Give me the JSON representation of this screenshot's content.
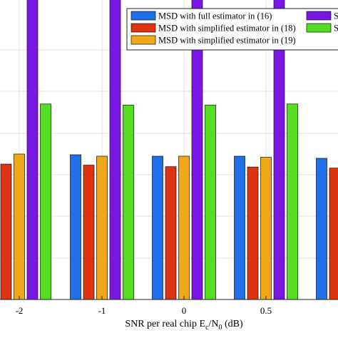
{
  "chart_data": {
    "type": "bar",
    "xlabel": "SNR per real chip E",
    "xlabel_sub1": "c",
    "xlabel_mid": "/N",
    "xlabel_sub2": "0",
    "xlabel_tail": " (dB)",
    "categories": [
      "-2",
      "-1",
      "0",
      "0.5",
      ""
    ],
    "grid": true,
    "legend_position": "top-right",
    "ylim": [
      0,
      1.0
    ],
    "series": [
      {
        "name": "MSD with full estimator in (16)",
        "color": "#1f6fe8",
        "values": [
          0.403,
          0.402,
          0.398,
          0.398,
          0.392
        ]
      },
      {
        "name": "MSD with simplified estimator in (18)",
        "color": "#dd3311",
        "values": [
          0.376,
          0.373,
          0.369,
          0.368,
          0.365
        ]
      },
      {
        "name": "MSD with simplified estimator in (19)",
        "color": "#f0a818",
        "values": [
          0.404,
          0.398,
          0.398,
          0.395,
          0.393
        ]
      },
      {
        "name": "SI",
        "color": "#7a16e4",
        "values": [
          0.96,
          0.95,
          0.875,
          0.875,
          null
        ]
      },
      {
        "name": "SI",
        "color": "#55dd22",
        "values": [
          0.543,
          0.54,
          0.54,
          0.543,
          null
        ]
      }
    ]
  }
}
